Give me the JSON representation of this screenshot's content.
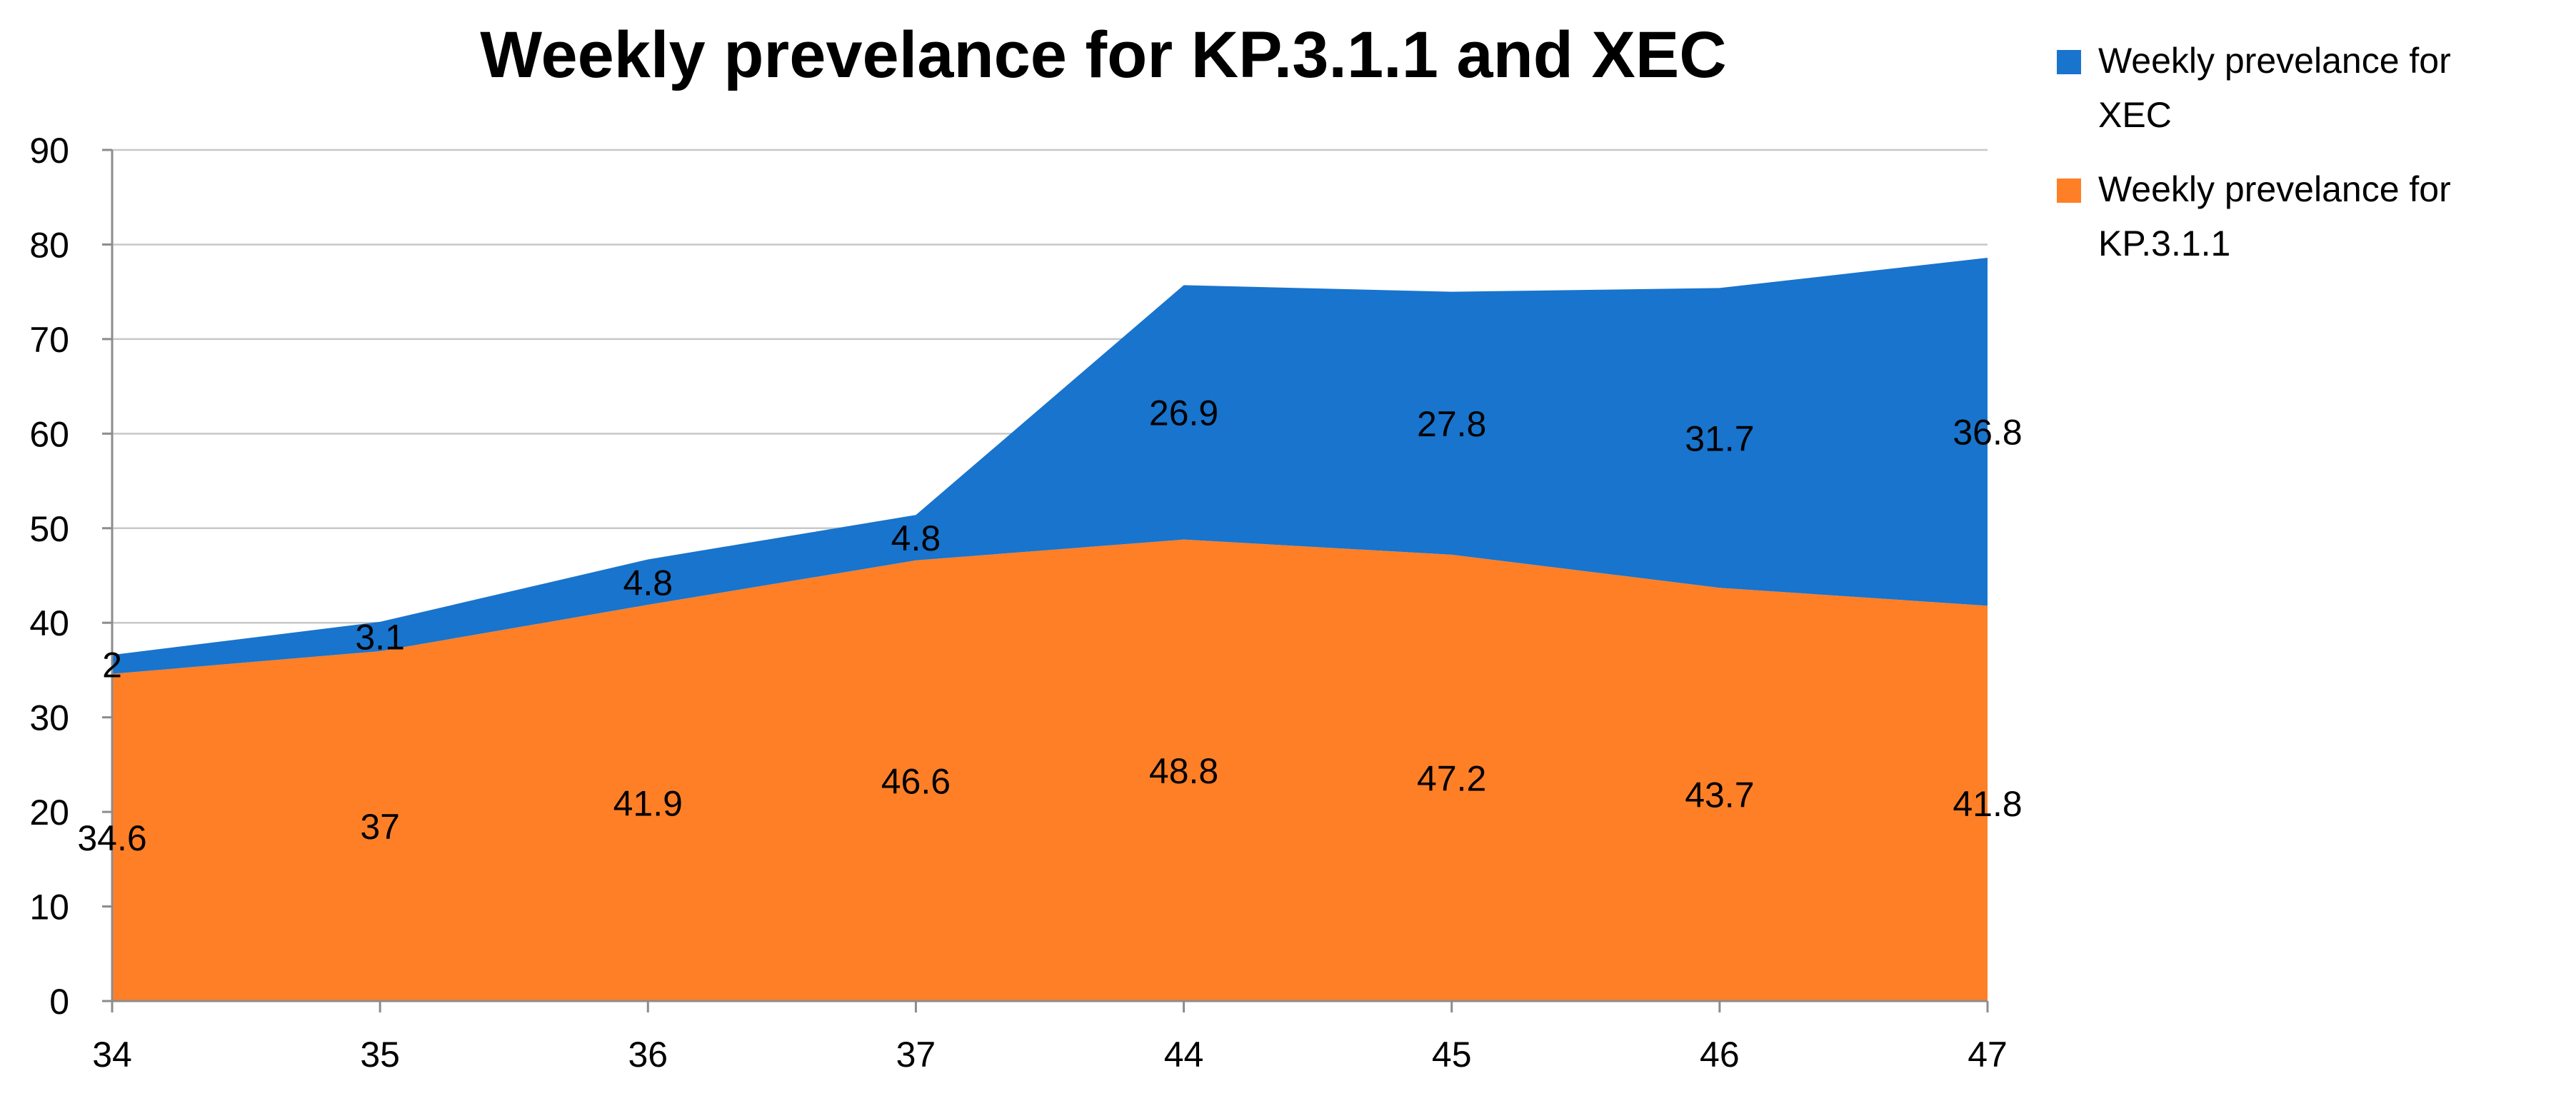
{
  "chart_data": {
    "type": "area",
    "stacked": true,
    "title": "Weekly prevelance for KP.3.1.1 and XEC",
    "xlabel": "",
    "ylabel": "",
    "categories": [
      "34",
      "35",
      "36",
      "37",
      "44",
      "45",
      "46",
      "47"
    ],
    "ylim": [
      0,
      90
    ],
    "yticks": [
      0,
      10,
      20,
      30,
      40,
      50,
      60,
      70,
      80,
      90
    ],
    "grid": true,
    "legend_position": "right",
    "series": [
      {
        "name": "Weekly prevelance for KP.3.1.1",
        "legend_lines": [
          "Weekly prevelance for",
          "KP.3.1.1"
        ],
        "color": "#FF7F27",
        "values": [
          34.6,
          37,
          41.9,
          46.6,
          48.8,
          47.2,
          43.7,
          41.8
        ],
        "labels": [
          "34.6",
          "37",
          "41.9",
          "46.6",
          "48.8",
          "47.2",
          "43.7",
          "41.8"
        ]
      },
      {
        "name": "Weekly prevelance for XEC",
        "legend_lines": [
          "Weekly prevelance for",
          "XEC"
        ],
        "color": "#1874CD",
        "values": [
          2,
          3.1,
          4.8,
          4.8,
          26.9,
          27.8,
          31.7,
          36.8
        ],
        "labels": [
          "2",
          "3.1",
          "4.8",
          "4.8",
          "26.9",
          "27.8",
          "31.7",
          "36.8"
        ]
      }
    ]
  }
}
